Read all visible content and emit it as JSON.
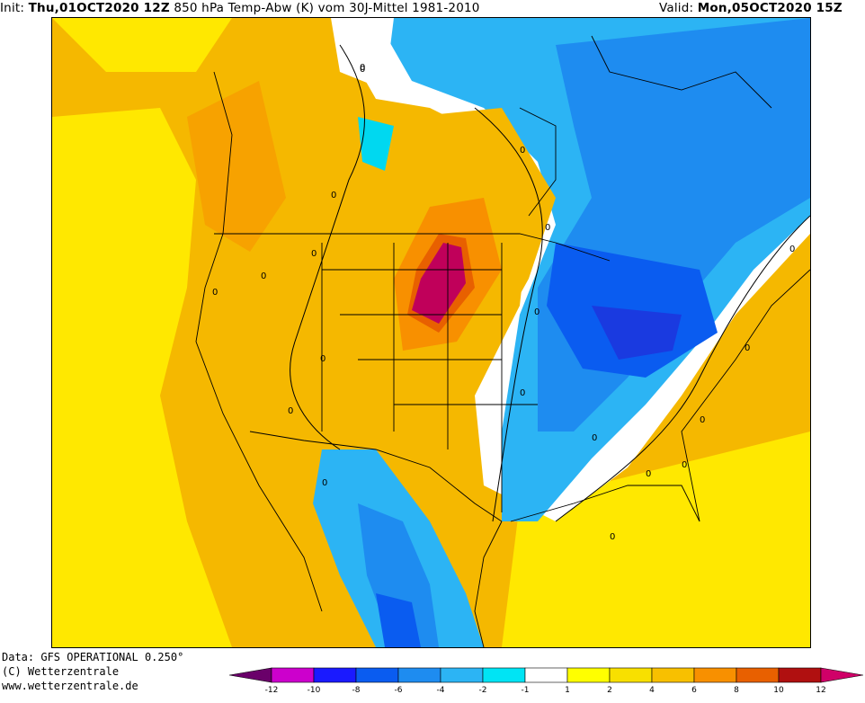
{
  "header": {
    "init_label": "Init:",
    "init_time": "Thu,01OCT2020 12Z",
    "title": "850 hPa Temp-Abw (K) vom 30J-Mittel 1981-2010",
    "valid_label": "Valid:",
    "valid_time": "Mon,05OCT2020 15Z"
  },
  "footer": {
    "data_source": "Data: GFS OPERATIONAL 0.250°",
    "copyright": "(C) Wetterzentrale",
    "url": "www.wetterzentrale.de"
  },
  "colorbar": {
    "ticks": [
      "-12",
      "-10",
      "-8",
      "-6",
      "-4",
      "-2",
      "-1",
      "1",
      "2",
      "4",
      "6",
      "8",
      "10",
      "12"
    ],
    "colors": [
      "#6a006a",
      "#cc00cc",
      "#1a1aff",
      "#0a5cf0",
      "#1e8cf0",
      "#2cb4f4",
      "#00e4f4",
      "#ffffff",
      "#ffff00",
      "#f8e000",
      "#f8c000",
      "#f89000",
      "#e86000",
      "#b01010",
      "#d00068"
    ]
  },
  "contour_labels": [
    "0",
    "0",
    "0",
    "0",
    "0",
    "0",
    "0",
    "0",
    "0",
    "0",
    "0",
    "0",
    "0",
    "0",
    "0",
    "0",
    "0",
    "0",
    "0",
    "0"
  ],
  "colors": {
    "warm_base": "#f5b800",
    "yellow": "#ffe800",
    "orange": "#f89000",
    "dark_orange": "#e86000",
    "magenta": "#c0005a",
    "cyan": "#00d8f0",
    "light_blue": "#2cb4f4",
    "blue": "#1e8cf0",
    "mid_blue": "#0a5cf0",
    "dark_blue": "#1a3ae0"
  }
}
